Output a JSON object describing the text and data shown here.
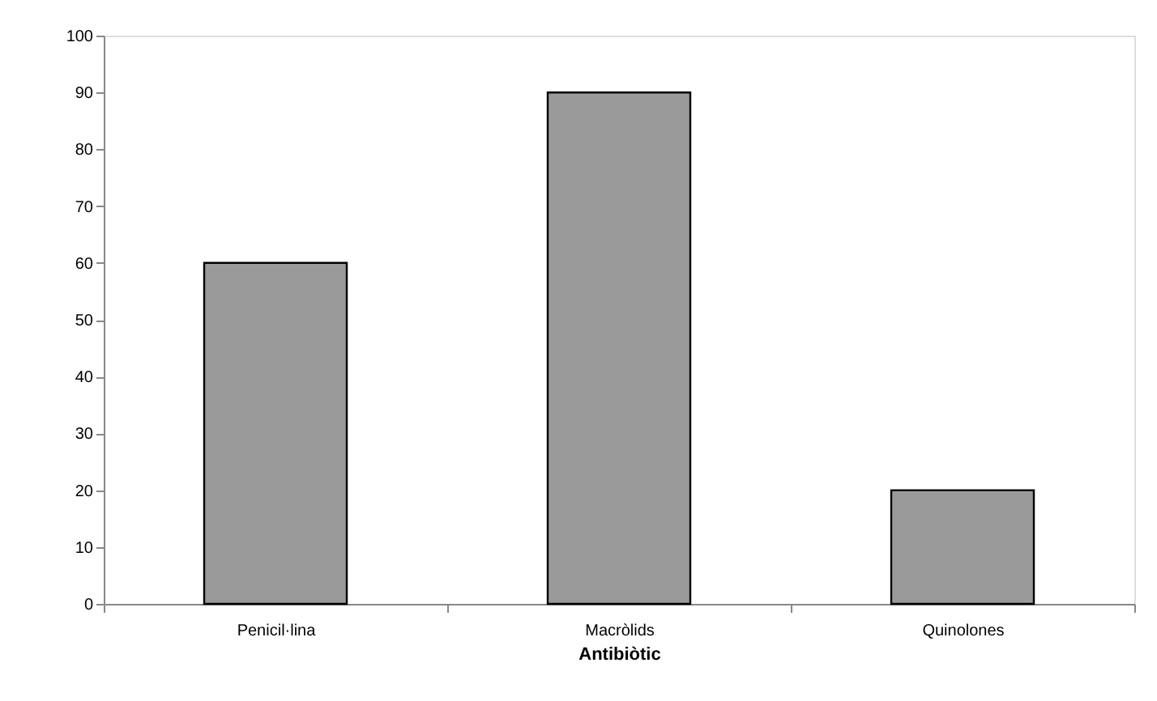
{
  "chart_data": {
    "type": "bar",
    "xlabel": "Antibiòtic",
    "categories": [
      "Penicil·lina",
      "Macròlids",
      "Quinolones"
    ],
    "values": [
      60,
      90,
      20
    ],
    "color": "#9a9a9a",
    "ylim": [
      0,
      100
    ],
    "yticks": [
      0,
      10,
      20,
      30,
      40,
      50,
      60,
      70,
      80,
      90,
      100
    ],
    "grid": false
  }
}
